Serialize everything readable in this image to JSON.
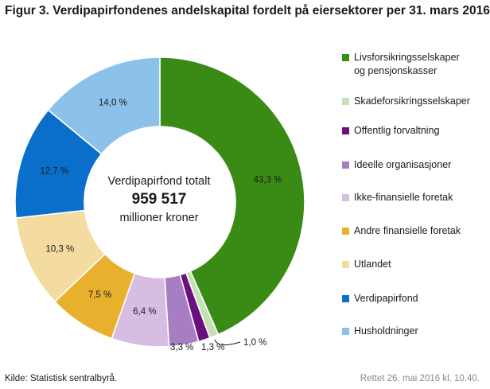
{
  "figure_title": "Figur 3. Verdipapirfondenes andelskapital fordelt på eiersektorer per 31. mars 2016",
  "center": {
    "line1": "Verdipapirfond totalt",
    "total": "959 517",
    "line3": "millioner kroner"
  },
  "source": "Kilde: Statistisk sentralbyrå.",
  "revised": "Rettet 26. mai 2016 kl. 10.40.",
  "chart_data": {
    "type": "pie",
    "subtype": "donut",
    "start_angle_deg": 0,
    "direction": "clockwise",
    "legend_position": "right",
    "slices": [
      {
        "label": "Livsforsikringsselskaper og pensjonskasser",
        "value": 43.3,
        "value_label": "43,3  %",
        "color": "#3a8a16"
      },
      {
        "label": "Skadeforsikringsselskaper",
        "value": 1.0,
        "value_label": "1,0  %",
        "color": "#c5e0b4"
      },
      {
        "label": "Offentlig forvaltning",
        "value": 1.3,
        "value_label": "1,3  %",
        "color": "#6a0f7e"
      },
      {
        "label": "Ideelle organisasjoner",
        "value": 3.3,
        "value_label": "3,3  %",
        "color": "#a87ec2"
      },
      {
        "label": "Ikke-finansielle foretak",
        "value": 6.4,
        "value_label": "6,4  %",
        "color": "#d8bde3"
      },
      {
        "label": "Andre finansielle foretak",
        "value": 7.5,
        "value_label": "7,5  %",
        "color": "#e8b02c"
      },
      {
        "label": "Utlandet",
        "value": 10.3,
        "value_label": "10,3  %",
        "color": "#f4dba0"
      },
      {
        "label": "Verdipapirfond",
        "value": 12.7,
        "value_label": "12,7  %",
        "color": "#0a6fcb"
      },
      {
        "label": "Husholdninger",
        "value": 14.0,
        "value_label": "14,0  %",
        "color": "#8cc1ea"
      }
    ]
  }
}
